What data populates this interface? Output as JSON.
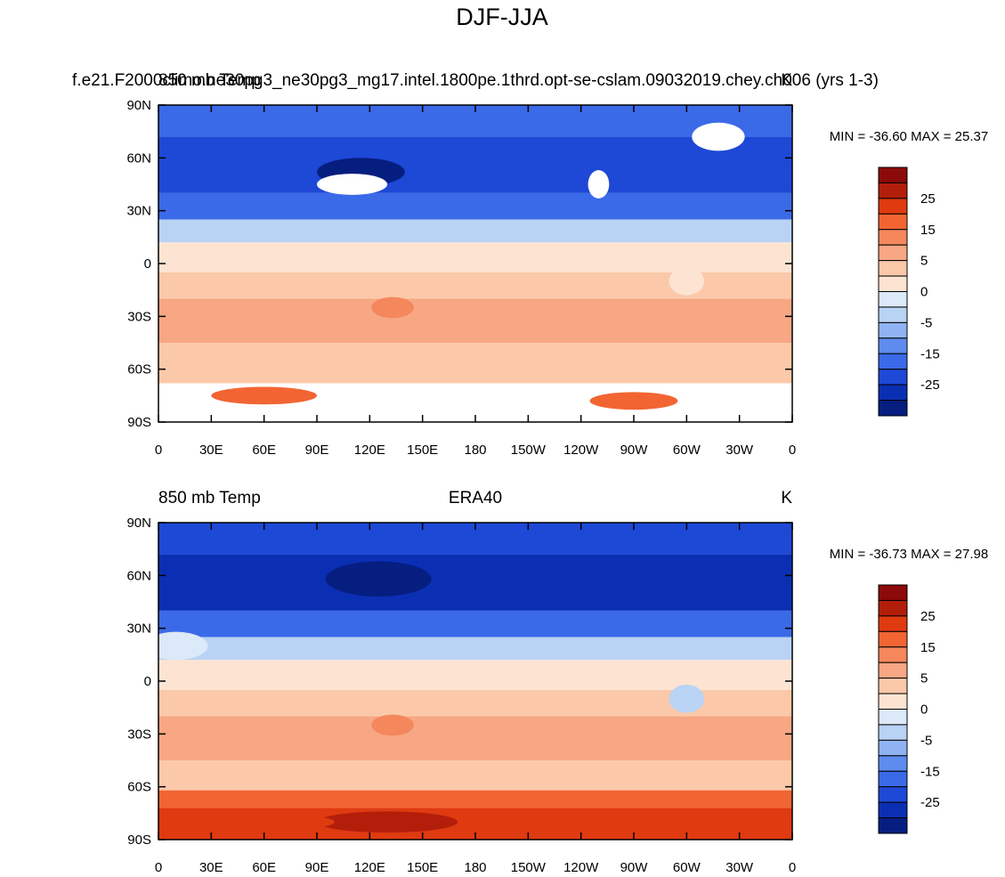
{
  "title": "DJF-JJA",
  "lon_labels": [
    "0",
    "30E",
    "60E",
    "90E",
    "120E",
    "150E",
    "180",
    "150W",
    "120W",
    "90W",
    "60W",
    "30W",
    "0"
  ],
  "lat_labels": [
    "90N",
    "60N",
    "30N",
    "0",
    "30S",
    "60S",
    "90S"
  ],
  "colorbar_labels": [
    "25",
    "15",
    "5",
    "0",
    "-5",
    "-15",
    "-25"
  ],
  "panels": [
    {
      "left": "850 mb Temp",
      "center": "f.e21.F2000climo.ne30pg3_ne30pg3_mg17.intel.1800pe.1thrd.opt-se-cslam.09032019.chey.ch006 (yrs 1-3)",
      "right": "K",
      "stats": "MIN = -36.60 MAX =  25.37"
    },
    {
      "left": "850 mb Temp",
      "center": "ERA40",
      "right": "K",
      "stats": "MIN = -36.73 MAX =  27.98"
    }
  ]
}
